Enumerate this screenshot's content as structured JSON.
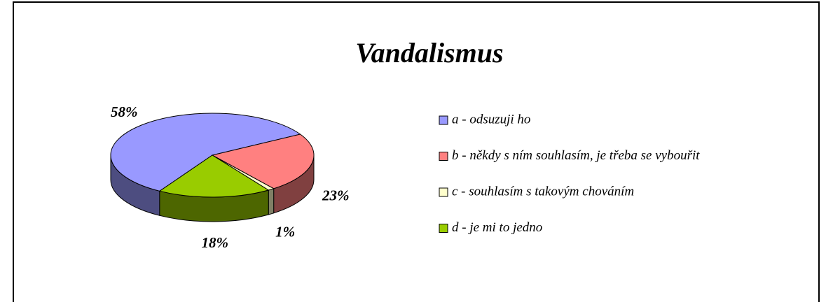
{
  "chart_data": {
    "type": "pie",
    "title": "Vandalismus",
    "categories": [
      "a - odsuzuji ho",
      "b - někdy s ním souhlasím, je třeba se vybouřit",
      "c - souhlasím s takovým chováním",
      "d - je mi to jedno"
    ],
    "values": [
      58,
      23,
      1,
      18
    ],
    "value_labels": [
      "58%",
      "23%",
      "1%",
      "18%"
    ],
    "colors": [
      "#9999ff",
      "#ff8080",
      "#ffffcc",
      "#99cc00"
    ],
    "legend": "right"
  }
}
